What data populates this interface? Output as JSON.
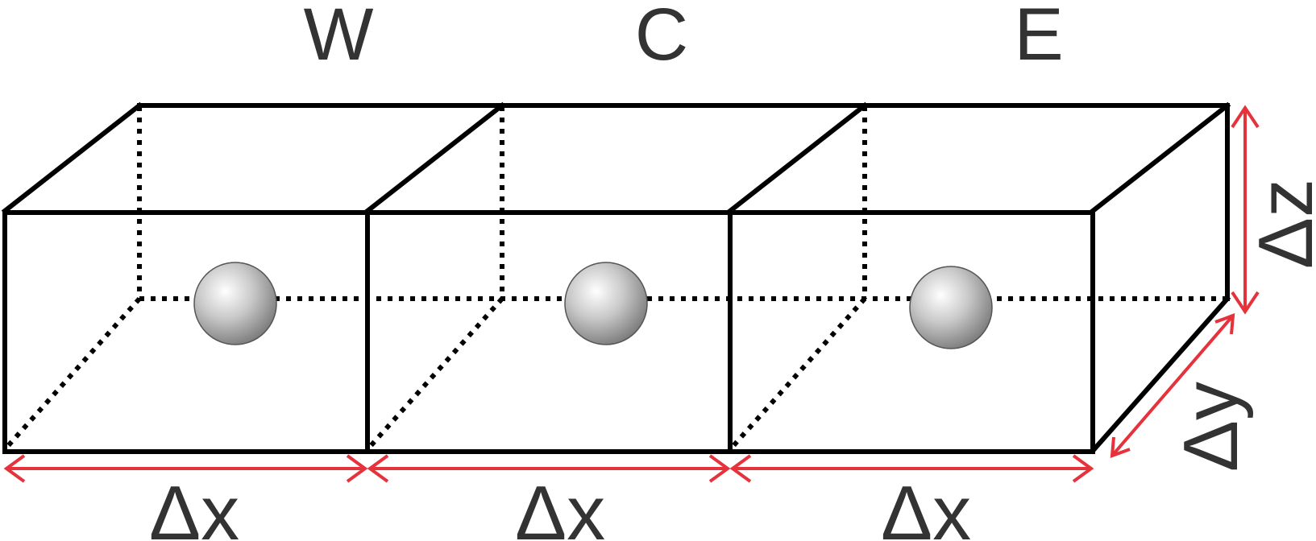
{
  "cells": [
    {
      "label": "W"
    },
    {
      "label": "C"
    },
    {
      "label": "E"
    }
  ],
  "dimensions": {
    "dx": [
      "Δx",
      "Δx",
      "Δx"
    ],
    "dy": "Δy",
    "dz": "Δz"
  },
  "colors": {
    "edge": "#000000",
    "dimension_arrow": "#e5323b",
    "label_text": "#333333",
    "sphere": "#9a9a9a"
  }
}
